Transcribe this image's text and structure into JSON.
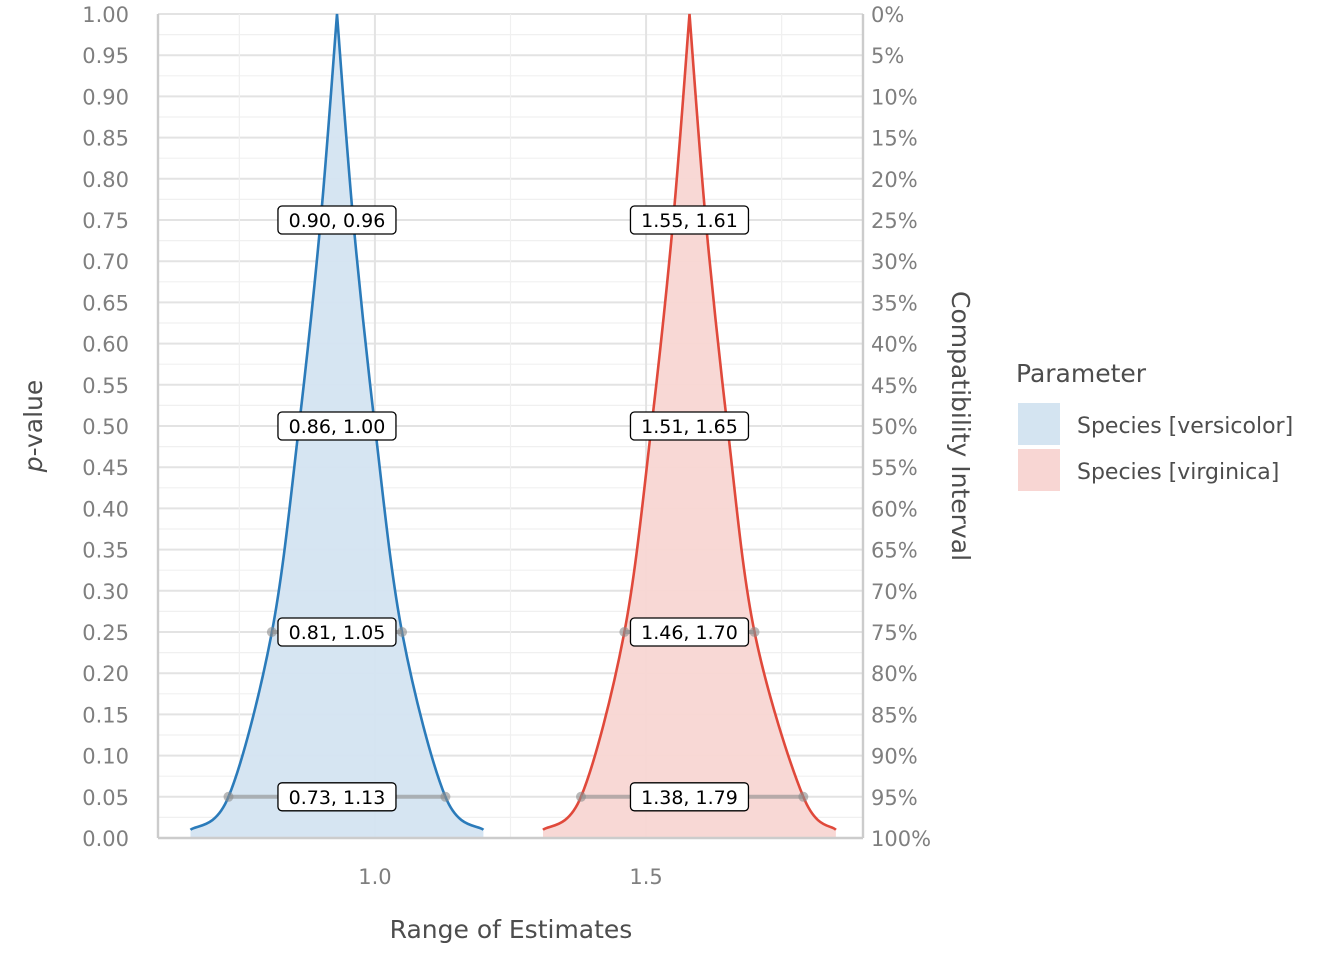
{
  "chart_data": {
    "type": "area",
    "xlabel": "Range of Estimates",
    "ylabel": "p-value",
    "ylabel_italic_part": "p",
    "ylabel_rest": "-value",
    "y2label": "Compatibility Interval",
    "xlim": [
      0.6,
      1.9
    ],
    "ylim": [
      0,
      1
    ],
    "x_ticks": [
      1.0,
      1.5
    ],
    "x_tick_labels": [
      "1.0",
      "1.5"
    ],
    "y_ticks": [
      0,
      0.05,
      0.1,
      0.15,
      0.2,
      0.25,
      0.3,
      0.35,
      0.4,
      0.45,
      0.5,
      0.55,
      0.6,
      0.65,
      0.7,
      0.75,
      0.8,
      0.85,
      0.9,
      0.95,
      1.0
    ],
    "y_tick_labels": [
      "0.00",
      "0.05",
      "0.10",
      "0.15",
      "0.20",
      "0.25",
      "0.30",
      "0.35",
      "0.40",
      "0.45",
      "0.50",
      "0.55",
      "0.60",
      "0.65",
      "0.70",
      "0.75",
      "0.80",
      "0.85",
      "0.90",
      "0.95",
      "1.00"
    ],
    "y2_tick_labels": [
      "100%",
      "95%",
      "90%",
      "85%",
      "80%",
      "75%",
      "70%",
      "65%",
      "60%",
      "55%",
      "50%",
      "45%",
      "40%",
      "35%",
      "30%",
      "25%",
      "20%",
      "15%",
      "10%",
      "5%",
      "0%"
    ],
    "grid": true,
    "legend": {
      "title": "Parameter",
      "position": "right",
      "entries": [
        "Species [versicolor]",
        "Species [virginica]"
      ]
    },
    "series": [
      {
        "name": "Species [versicolor]",
        "line_color": "#2b7bba",
        "fill_color": "#d4e4f1",
        "estimate": 0.93,
        "x_range": [
          0.66,
          1.2
        ],
        "intervals": [
          {
            "p": 0.75,
            "lower": 0.9,
            "upper": 0.96,
            "label": "0.90, 0.96"
          },
          {
            "p": 0.5,
            "lower": 0.86,
            "upper": 1.0,
            "label": "0.86, 1.00"
          },
          {
            "p": 0.25,
            "lower": 0.81,
            "upper": 1.05,
            "label": "0.81, 1.05"
          },
          {
            "p": 0.05,
            "lower": 0.73,
            "upper": 1.13,
            "label": "0.73, 1.13"
          }
        ]
      },
      {
        "name": "Species [virginica]",
        "line_color": "#e0493b",
        "fill_color": "#f8d6d3",
        "estimate": 1.58,
        "x_range": [
          1.31,
          1.85
        ],
        "intervals": [
          {
            "p": 0.75,
            "lower": 1.55,
            "upper": 1.61,
            "label": "1.55, 1.61"
          },
          {
            "p": 0.5,
            "lower": 1.51,
            "upper": 1.65,
            "label": "1.51, 1.65"
          },
          {
            "p": 0.25,
            "lower": 1.46,
            "upper": 1.7,
            "label": "1.46, 1.70"
          },
          {
            "p": 0.05,
            "lower": 1.38,
            "upper": 1.79,
            "label": "1.38, 1.79"
          }
        ]
      }
    ]
  }
}
